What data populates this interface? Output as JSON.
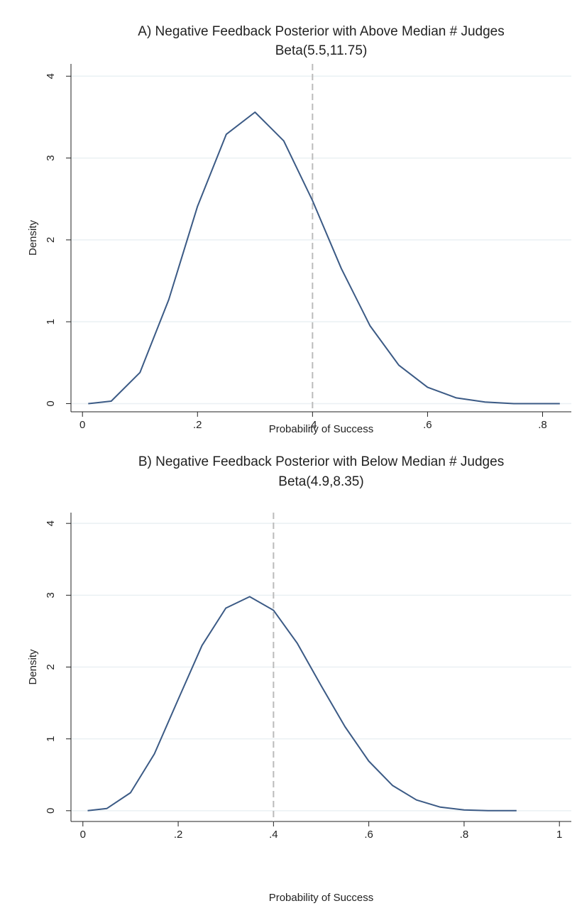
{
  "chart_data": [
    {
      "type": "line",
      "title": "A) Negative Feedback Posterior with Above Median # Judges",
      "subtitle": "Beta(5.5,11.75)",
      "x_label": "Probability of Success",
      "y_label": "Density",
      "x": [
        0.01,
        0.05,
        0.1,
        0.15,
        0.2,
        0.25,
        0.3,
        0.35,
        0.4,
        0.45,
        0.5,
        0.55,
        0.6,
        0.65,
        0.7,
        0.75,
        0.83
      ],
      "values": [
        0,
        0.03,
        0.38,
        1.27,
        2.41,
        3.29,
        3.56,
        3.21,
        2.48,
        1.65,
        0.95,
        0.47,
        0.2,
        0.07,
        0.02,
        0,
        0
      ],
      "color": "#3b5a85",
      "reference_line": 0.4,
      "xlim": [
        -0.02,
        0.85
      ],
      "ylim": [
        -0.1,
        4.15
      ],
      "xticks": [
        0,
        {
          "value": 0.2,
          "label": ".2"
        },
        {
          "value": 0.4,
          "label": ".4"
        },
        {
          "value": 0.6,
          "label": ".6"
        },
        {
          "value": 0.8,
          "label": ".8"
        }
      ],
      "yticks": [
        0,
        1,
        2,
        3,
        4
      ],
      "grid": true
    },
    {
      "type": "line",
      "title": "B) Negative Feedback Posterior with Below Median # Judges",
      "subtitle": "Beta(4.9,8.35)",
      "x_label": "Probability of Success",
      "y_label": "Density",
      "x": [
        0.01,
        0.05,
        0.1,
        0.15,
        0.2,
        0.25,
        0.3,
        0.35,
        0.4,
        0.45,
        0.5,
        0.55,
        0.6,
        0.65,
        0.7,
        0.75,
        0.8,
        0.85,
        0.91
      ],
      "values": [
        0,
        0.03,
        0.25,
        0.79,
        1.55,
        2.3,
        2.82,
        2.98,
        2.79,
        2.33,
        1.74,
        1.17,
        0.69,
        0.35,
        0.15,
        0.05,
        0.01,
        0,
        0
      ],
      "color": "#3b5a85",
      "reference_line": 0.4,
      "xlim": [
        -0.025,
        1.025
      ],
      "ylim": [
        -0.15,
        4.15
      ],
      "xticks": [
        0,
        {
          "value": 0.2,
          "label": ".2"
        },
        {
          "value": 0.4,
          "label": ".4"
        },
        {
          "value": 0.6,
          "label": ".6"
        },
        {
          "value": 0.8,
          "label": ".8"
        },
        1
      ],
      "yticks": [
        0,
        1,
        2,
        3,
        4
      ],
      "grid": true
    }
  ]
}
